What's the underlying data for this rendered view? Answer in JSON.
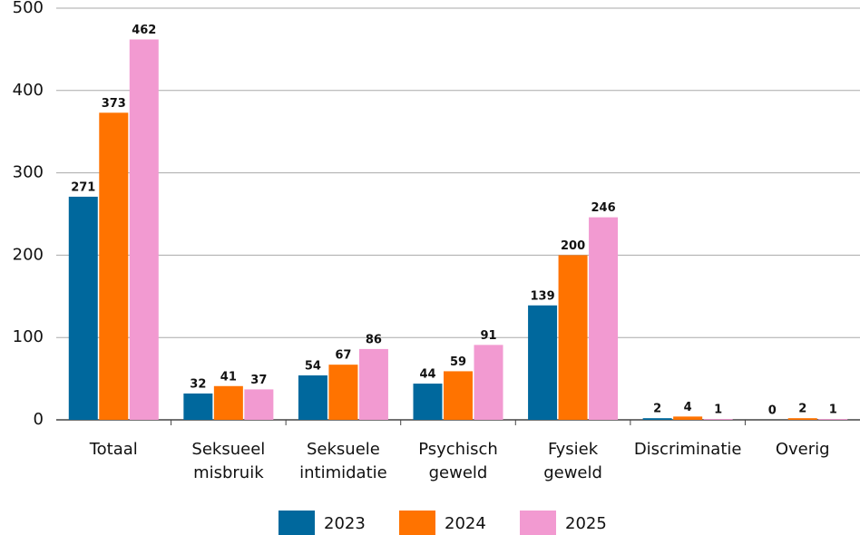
{
  "chart_data": {
    "type": "bar",
    "categories": [
      "Totaal",
      "Seksueel misbruik",
      "Seksuele intimidatie",
      "Psychisch geweld",
      "Fysiek geweld",
      "Discriminatie",
      "Overig"
    ],
    "series": [
      {
        "name": "2023",
        "color": "#00689d",
        "values": [
          271,
          32,
          54,
          44,
          139,
          2,
          0
        ]
      },
      {
        "name": "2024",
        "color": "#ff7300",
        "values": [
          373,
          41,
          67,
          59,
          200,
          4,
          2
        ]
      },
      {
        "name": "2025",
        "color": "#f29ad1",
        "values": [
          462,
          37,
          86,
          91,
          246,
          1,
          1
        ]
      }
    ],
    "ylim": [
      0,
      500
    ],
    "yticks": [
      0,
      100,
      200,
      300,
      400,
      500
    ],
    "grid": true,
    "legend": "bottom"
  }
}
